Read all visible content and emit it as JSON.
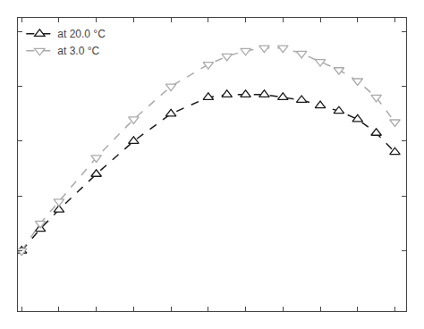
{
  "chart_data": {
    "type": "line",
    "x": [
      0,
      5,
      10,
      20,
      30,
      40,
      50,
      55,
      60,
      65,
      70,
      75,
      80,
      85,
      90,
      95,
      100
    ],
    "series": [
      {
        "name": "at 20.0 °C",
        "color": "#1a1a1a",
        "marker": "triangle-up",
        "line_style": "dashed",
        "values": [
          0.0,
          0.008,
          0.015,
          0.028,
          0.04,
          0.05,
          0.056,
          0.057,
          0.057,
          0.057,
          0.056,
          0.055,
          0.053,
          0.051,
          0.048,
          0.043,
          0.036
        ]
      },
      {
        "name": "at 3.0 °C",
        "color": "#aaaaaa",
        "marker": "triangle-down",
        "line_style": "dashed",
        "values": [
          0.0,
          0.01,
          0.018,
          0.034,
          0.048,
          0.06,
          0.068,
          0.071,
          0.073,
          0.074,
          0.074,
          0.072,
          0.069,
          0.066,
          0.062,
          0.056,
          0.047
        ]
      }
    ],
    "xlim": [
      -1,
      103
    ],
    "ylim": [
      -0.022,
      0.085
    ],
    "xticks": [
      0,
      10,
      20,
      30,
      40,
      50,
      60,
      70,
      80,
      90,
      100
    ],
    "yticks": [
      0,
      0.02,
      0.04,
      0.06,
      0.08
    ],
    "legend": "upper left",
    "grid": false,
    "tick_labels": false
  }
}
